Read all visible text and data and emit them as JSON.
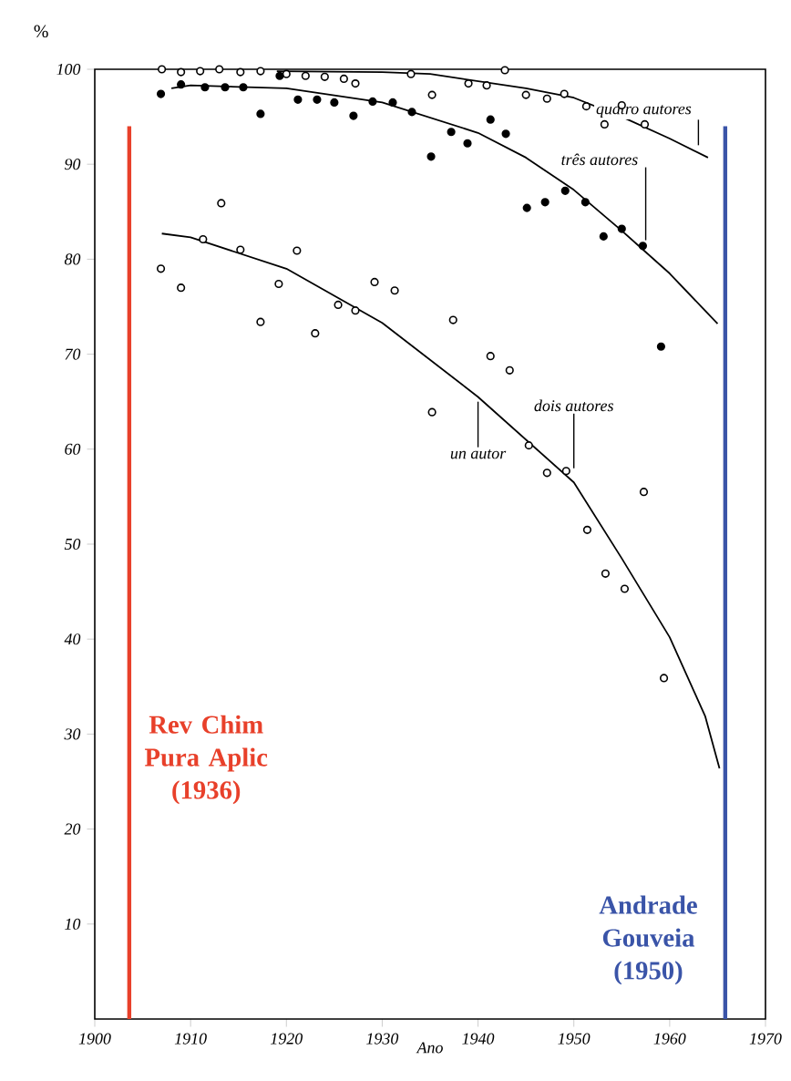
{
  "chart_data": {
    "type": "scatter",
    "xlabel": "Ano",
    "ylabel": "%",
    "xlim": [
      1900,
      1970
    ],
    "ylim": [
      0,
      100
    ],
    "xticks": [
      1900,
      1910,
      1920,
      1930,
      1940,
      1950,
      1960,
      1970
    ],
    "yticks": [
      10,
      20,
      30,
      40,
      50,
      60,
      70,
      80,
      90,
      100
    ],
    "grid": false,
    "marker": "circle",
    "series": [
      {
        "color": "#ffffff",
        "x": [
          1907,
          1909,
          1911,
          1913,
          1915.2,
          1917.3,
          1920,
          1922,
          1924,
          1926,
          1927.2,
          1933,
          1935.2,
          1939,
          1940.9,
          1942.8,
          1945,
          1947.2,
          1949,
          1951.3,
          1953.2,
          1955,
          1957.4
        ],
        "values": [
          100,
          99.7,
          99.8,
          100,
          99.7,
          99.8,
          99.5,
          99.3,
          99.2,
          99,
          98.5,
          99.5,
          97.3,
          98.5,
          98.3,
          99.9,
          97.3,
          96.9,
          97.4,
          96.1,
          94.2,
          96.2,
          94.2
        ]
      },
      {
        "color": "#000000",
        "x": [
          1906.9,
          1909,
          1911.5,
          1913.6,
          1915.5,
          1917.3,
          1919.3,
          1921.2,
          1923.2,
          1925,
          1927,
          1929,
          1931.1,
          1933.1,
          1935.1,
          1937.2,
          1938.9,
          1941.3,
          1942.9,
          1945.1,
          1947,
          1949.1,
          1951.2,
          1953.1,
          1955,
          1957.2,
          1959.1
        ],
        "values": [
          97.4,
          98.4,
          98.1,
          98.1,
          98.1,
          95.3,
          99.3,
          96.8,
          96.8,
          96.5,
          95.1,
          96.6,
          96.5,
          95.5,
          90.8,
          93.4,
          92.2,
          94.7,
          93.2,
          85.4,
          86,
          87.2,
          86,
          82.4,
          83.2,
          81.4,
          70.8
        ]
      },
      {
        "color": "#ffffff",
        "x": [
          1906.9,
          1909,
          1911.3,
          1913.2,
          1915.2,
          1917.3,
          1919.2,
          1921.1,
          1923,
          1925.4,
          1927.2,
          1929.2,
          1931.3,
          1935.2,
          1937.4,
          1941.3,
          1943.3,
          1945.3,
          1947.2,
          1949.2,
          1951.4,
          1953.3,
          1955.3,
          1957.3,
          1959.4
        ],
        "values": [
          79,
          77,
          82.1,
          85.9,
          81,
          73.4,
          77.4,
          80.9,
          72.2,
          75.2,
          74.6,
          77.6,
          76.7,
          63.9,
          73.6,
          69.8,
          68.3,
          60.4,
          57.5,
          57.7,
          51.5,
          46.9,
          45.3,
          55.5,
          35.9
        ]
      },
      {
        "type": "line",
        "marker": "none",
        "color": "#000000",
        "x": [
          1919,
          1930,
          1935,
          1945,
          1950,
          1955,
          1960,
          1964
        ],
        "values": [
          99.8,
          99.7,
          99.5,
          98,
          97,
          95,
          92.7,
          90.7
        ]
      },
      {
        "type": "line",
        "marker": "none",
        "color": "#000000",
        "x": [
          1908,
          1910,
          1920,
          1930,
          1940,
          1945,
          1950,
          1955,
          1960,
          1965
        ],
        "values": [
          98,
          98.3,
          98,
          96.5,
          93.3,
          90.7,
          87.3,
          83,
          78.5,
          73.2
        ]
      },
      {
        "type": "line",
        "marker": "none",
        "color": "#000000",
        "x": [
          1907,
          1910,
          1920,
          1930,
          1940,
          1945,
          1950,
          1955,
          1960,
          1963.7,
          1965.2
        ],
        "values": [
          82.7,
          82.3,
          79,
          73.3,
          65.5,
          61,
          56.5,
          48.5,
          40.2,
          31.9,
          26.4
        ]
      }
    ],
    "annotations": [
      {
        "text": "quatro autores",
        "x": 1963,
        "y": 92
      },
      {
        "text": "três autores",
        "x": 1957.5,
        "y": 82
      },
      {
        "text": "dois autores",
        "x": 1950,
        "y": 58
      },
      {
        "text": "un autor",
        "x": 1940,
        "y": 65
      }
    ],
    "ref_lines": [
      {
        "axis": "x",
        "value": 1903.6,
        "label": "Rev Chim Pura Aplic (1936)",
        "color": "#e8402a"
      },
      {
        "axis": "x",
        "value": 1965.8,
        "label": "Andrade Gouveia (1950)",
        "color": "#3a54a8"
      }
    ]
  }
}
